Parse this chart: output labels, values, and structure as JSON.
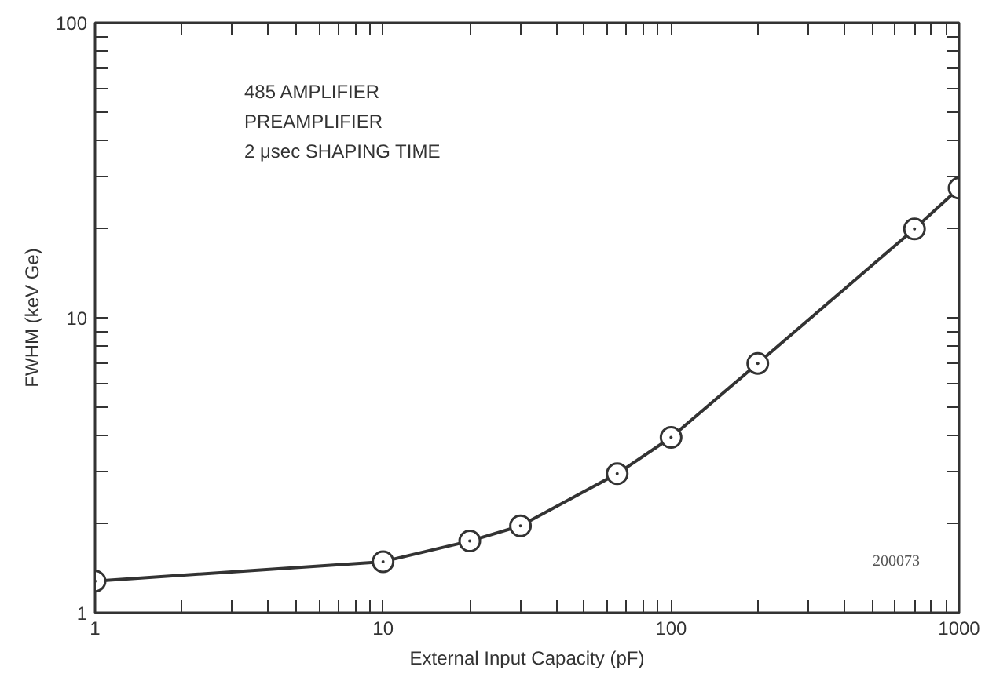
{
  "chart_data": {
    "type": "line",
    "xlabel": "External Input Capacity (pF)",
    "ylabel": "FWHM (keV Ge)",
    "log": "xy",
    "grid": false,
    "marker": "circle",
    "line_style": "solid",
    "xlim": [
      1,
      1000
    ],
    "ylim": [
      1,
      100
    ],
    "xticks": [
      1,
      {
        "value": 2,
        "label": null
      },
      {
        "value": 3,
        "label": null
      },
      {
        "value": 4,
        "label": null
      },
      {
        "value": 5,
        "label": null
      },
      {
        "value": 6,
        "label": null
      },
      {
        "value": 7,
        "label": null
      },
      {
        "value": 8,
        "label": null
      },
      {
        "value": 9,
        "label": null
      },
      10,
      {
        "value": 20,
        "label": null
      },
      {
        "value": 30,
        "label": null
      },
      {
        "value": 40,
        "label": null
      },
      {
        "value": 50,
        "label": null
      },
      {
        "value": 60,
        "label": null
      },
      {
        "value": 70,
        "label": null
      },
      {
        "value": 80,
        "label": null
      },
      {
        "value": 90,
        "label": null
      },
      100,
      {
        "value": 200,
        "label": null
      },
      {
        "value": 300,
        "label": null
      },
      {
        "value": 400,
        "label": null
      },
      {
        "value": 500,
        "label": null
      },
      {
        "value": 600,
        "label": null
      },
      {
        "value": 700,
        "label": null
      },
      {
        "value": 800,
        "label": null
      },
      {
        "value": 900,
        "label": null
      },
      1000
    ],
    "yticks": [
      1,
      {
        "value": 2,
        "label": null
      },
      {
        "value": 3,
        "label": null
      },
      {
        "value": 4,
        "label": null
      },
      {
        "value": 5,
        "label": null
      },
      {
        "value": 6,
        "label": null
      },
      {
        "value": 7,
        "label": null
      },
      {
        "value": 8,
        "label": null
      },
      {
        "value": 9,
        "label": null
      },
      10,
      {
        "value": 20,
        "label": null
      },
      {
        "value": 30,
        "label": null
      },
      {
        "value": 40,
        "label": null
      },
      {
        "value": 50,
        "label": null
      },
      {
        "value": 60,
        "label": null
      },
      {
        "value": 70,
        "label": null
      },
      {
        "value": 80,
        "label": null
      },
      {
        "value": 90,
        "label": null
      },
      100
    ],
    "x": [
      1,
      10,
      20,
      30,
      65,
      100,
      200,
      700,
      1000
    ],
    "series": [
      {
        "color": "#333333",
        "values": [
          1.28,
          1.49,
          1.75,
          1.97,
          2.96,
          3.93,
          7.0,
          20.0,
          27.5
        ]
      }
    ],
    "annotations": [
      "485 AMPLIFIER",
      "PREAMPLIFIER",
      "2 μsec SHAPING TIME",
      "200073"
    ]
  }
}
